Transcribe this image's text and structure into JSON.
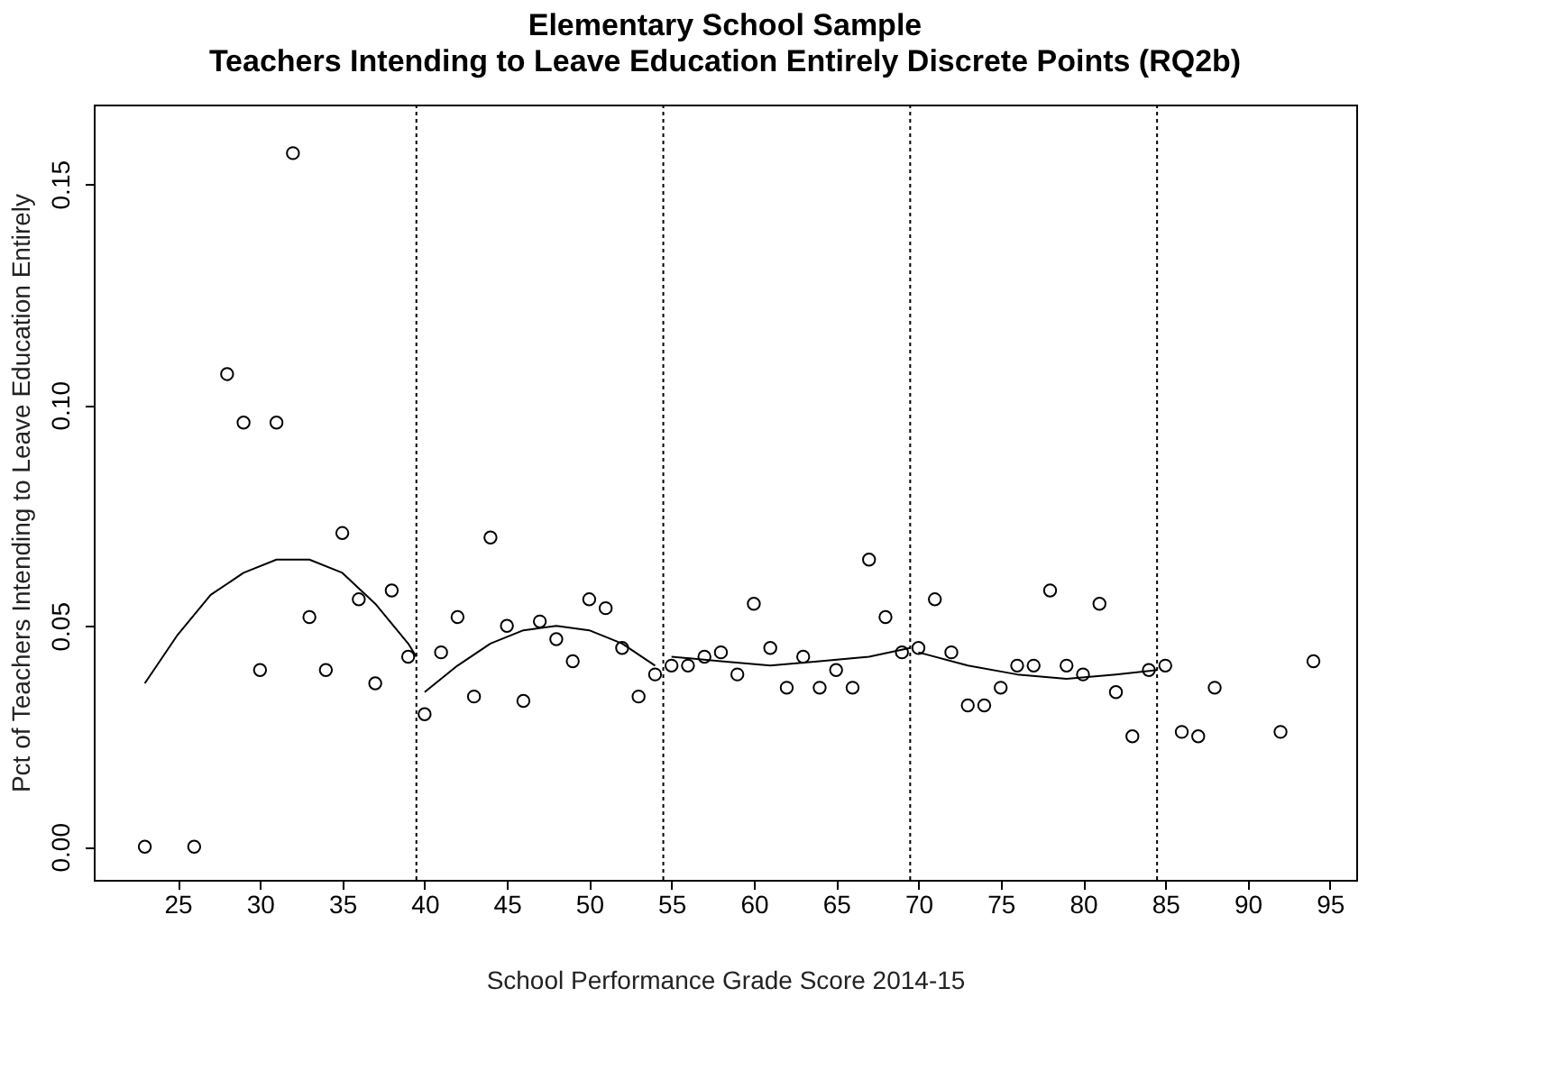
{
  "chart_data": {
    "type": "scatter",
    "title": "Elementary School Sample",
    "subtitle": "Teachers Intending to Leave Education Entirely Discrete Points (RQ2b)",
    "xlabel": "School Performance Grade Score 2014-15",
    "ylabel": "Pct of Teachers Intending to Leave Education Entirely",
    "xlim": [
      19.9,
      96.6
    ],
    "ylim": [
      -0.0075,
      0.168
    ],
    "xticks": [
      25,
      30,
      35,
      40,
      45,
      50,
      55,
      60,
      65,
      70,
      75,
      80,
      85,
      90,
      95
    ],
    "yticks": [
      {
        "value": 0,
        "label": "0.00"
      },
      {
        "value": 0.05,
        "label": "0.05"
      },
      {
        "value": 0.1,
        "label": "0.10"
      },
      {
        "value": 0.15,
        "label": "0.15"
      }
    ],
    "grid": false,
    "marker": "circle",
    "series": [
      {
        "color": "#000000",
        "x": [
          23,
          26,
          28,
          29,
          30,
          31,
          32,
          33,
          34,
          35,
          36,
          37,
          38,
          39,
          40,
          41,
          42,
          43,
          44,
          45,
          46,
          47,
          48,
          49,
          50,
          51,
          52,
          53,
          54,
          55,
          56,
          57,
          58,
          59,
          60,
          61,
          62,
          63,
          64,
          65,
          66,
          67,
          68,
          69,
          70,
          71,
          72,
          73,
          74,
          75,
          76,
          77,
          78,
          79,
          80,
          81,
          82,
          83,
          84,
          85,
          86,
          87,
          88,
          92,
          94
        ],
        "values": [
          0,
          0,
          0.107,
          0.096,
          0.04,
          0.096,
          0.157,
          0.052,
          0.04,
          0.071,
          0.056,
          0.037,
          0.058,
          0.043,
          0.03,
          0.044,
          0.052,
          0.034,
          0.07,
          0.05,
          0.033,
          0.051,
          0.047,
          0.042,
          0.056,
          0.054,
          0.045,
          0.034,
          0.039,
          0.041,
          0.041,
          0.043,
          0.044,
          0.039,
          0.055,
          0.045,
          0.036,
          0.043,
          0.036,
          0.04,
          0.036,
          0.065,
          0.052,
          0.044,
          0.045,
          0.056,
          0.044,
          0.032,
          0.032,
          0.036,
          0.041,
          0.041,
          0.058,
          0.041,
          0.039,
          0.055,
          0.035,
          0.025,
          0.04,
          0.041,
          0.026,
          0.025,
          0.036,
          0.026,
          0.042
        ]
      },
      {
        "type": "line",
        "marker": "none",
        "color": "#000000",
        "line_style": "solid",
        "x": [
          23,
          25,
          27,
          29,
          31,
          33,
          35,
          37,
          39,
          39.5
        ],
        "values": [
          0.037,
          0.048,
          0.057,
          0.062,
          0.065,
          0.065,
          0.062,
          0.055,
          0.046,
          0.043
        ]
      },
      {
        "type": "line",
        "marker": "none",
        "color": "#000000",
        "line_style": "solid",
        "x": [
          40,
          42,
          44,
          46,
          48,
          50,
          52,
          54
        ],
        "values": [
          0.035,
          0.041,
          0.046,
          0.049,
          0.05,
          0.049,
          0.046,
          0.041
        ]
      },
      {
        "type": "line",
        "marker": "none",
        "color": "#000000",
        "line_style": "solid",
        "x": [
          55,
          58,
          61,
          64,
          67,
          69.5
        ],
        "values": [
          0.043,
          0.042,
          0.041,
          0.042,
          0.043,
          0.045
        ]
      },
      {
        "type": "line",
        "marker": "none",
        "color": "#000000",
        "line_style": "solid",
        "x": [
          70,
          73,
          76,
          79,
          82,
          84.5
        ],
        "values": [
          0.044,
          0.041,
          0.039,
          0.038,
          0.039,
          0.04
        ]
      }
    ],
    "ref_lines": [
      {
        "axis": "x",
        "value": 39.5,
        "color": "#000000",
        "line_style": "dotted"
      },
      {
        "axis": "x",
        "value": 54.5,
        "color": "#000000",
        "line_style": "dotted"
      },
      {
        "axis": "x",
        "value": 69.5,
        "color": "#000000",
        "line_style": "dotted"
      },
      {
        "axis": "x",
        "value": 84.5,
        "color": "#000000",
        "line_style": "dotted"
      }
    ]
  }
}
